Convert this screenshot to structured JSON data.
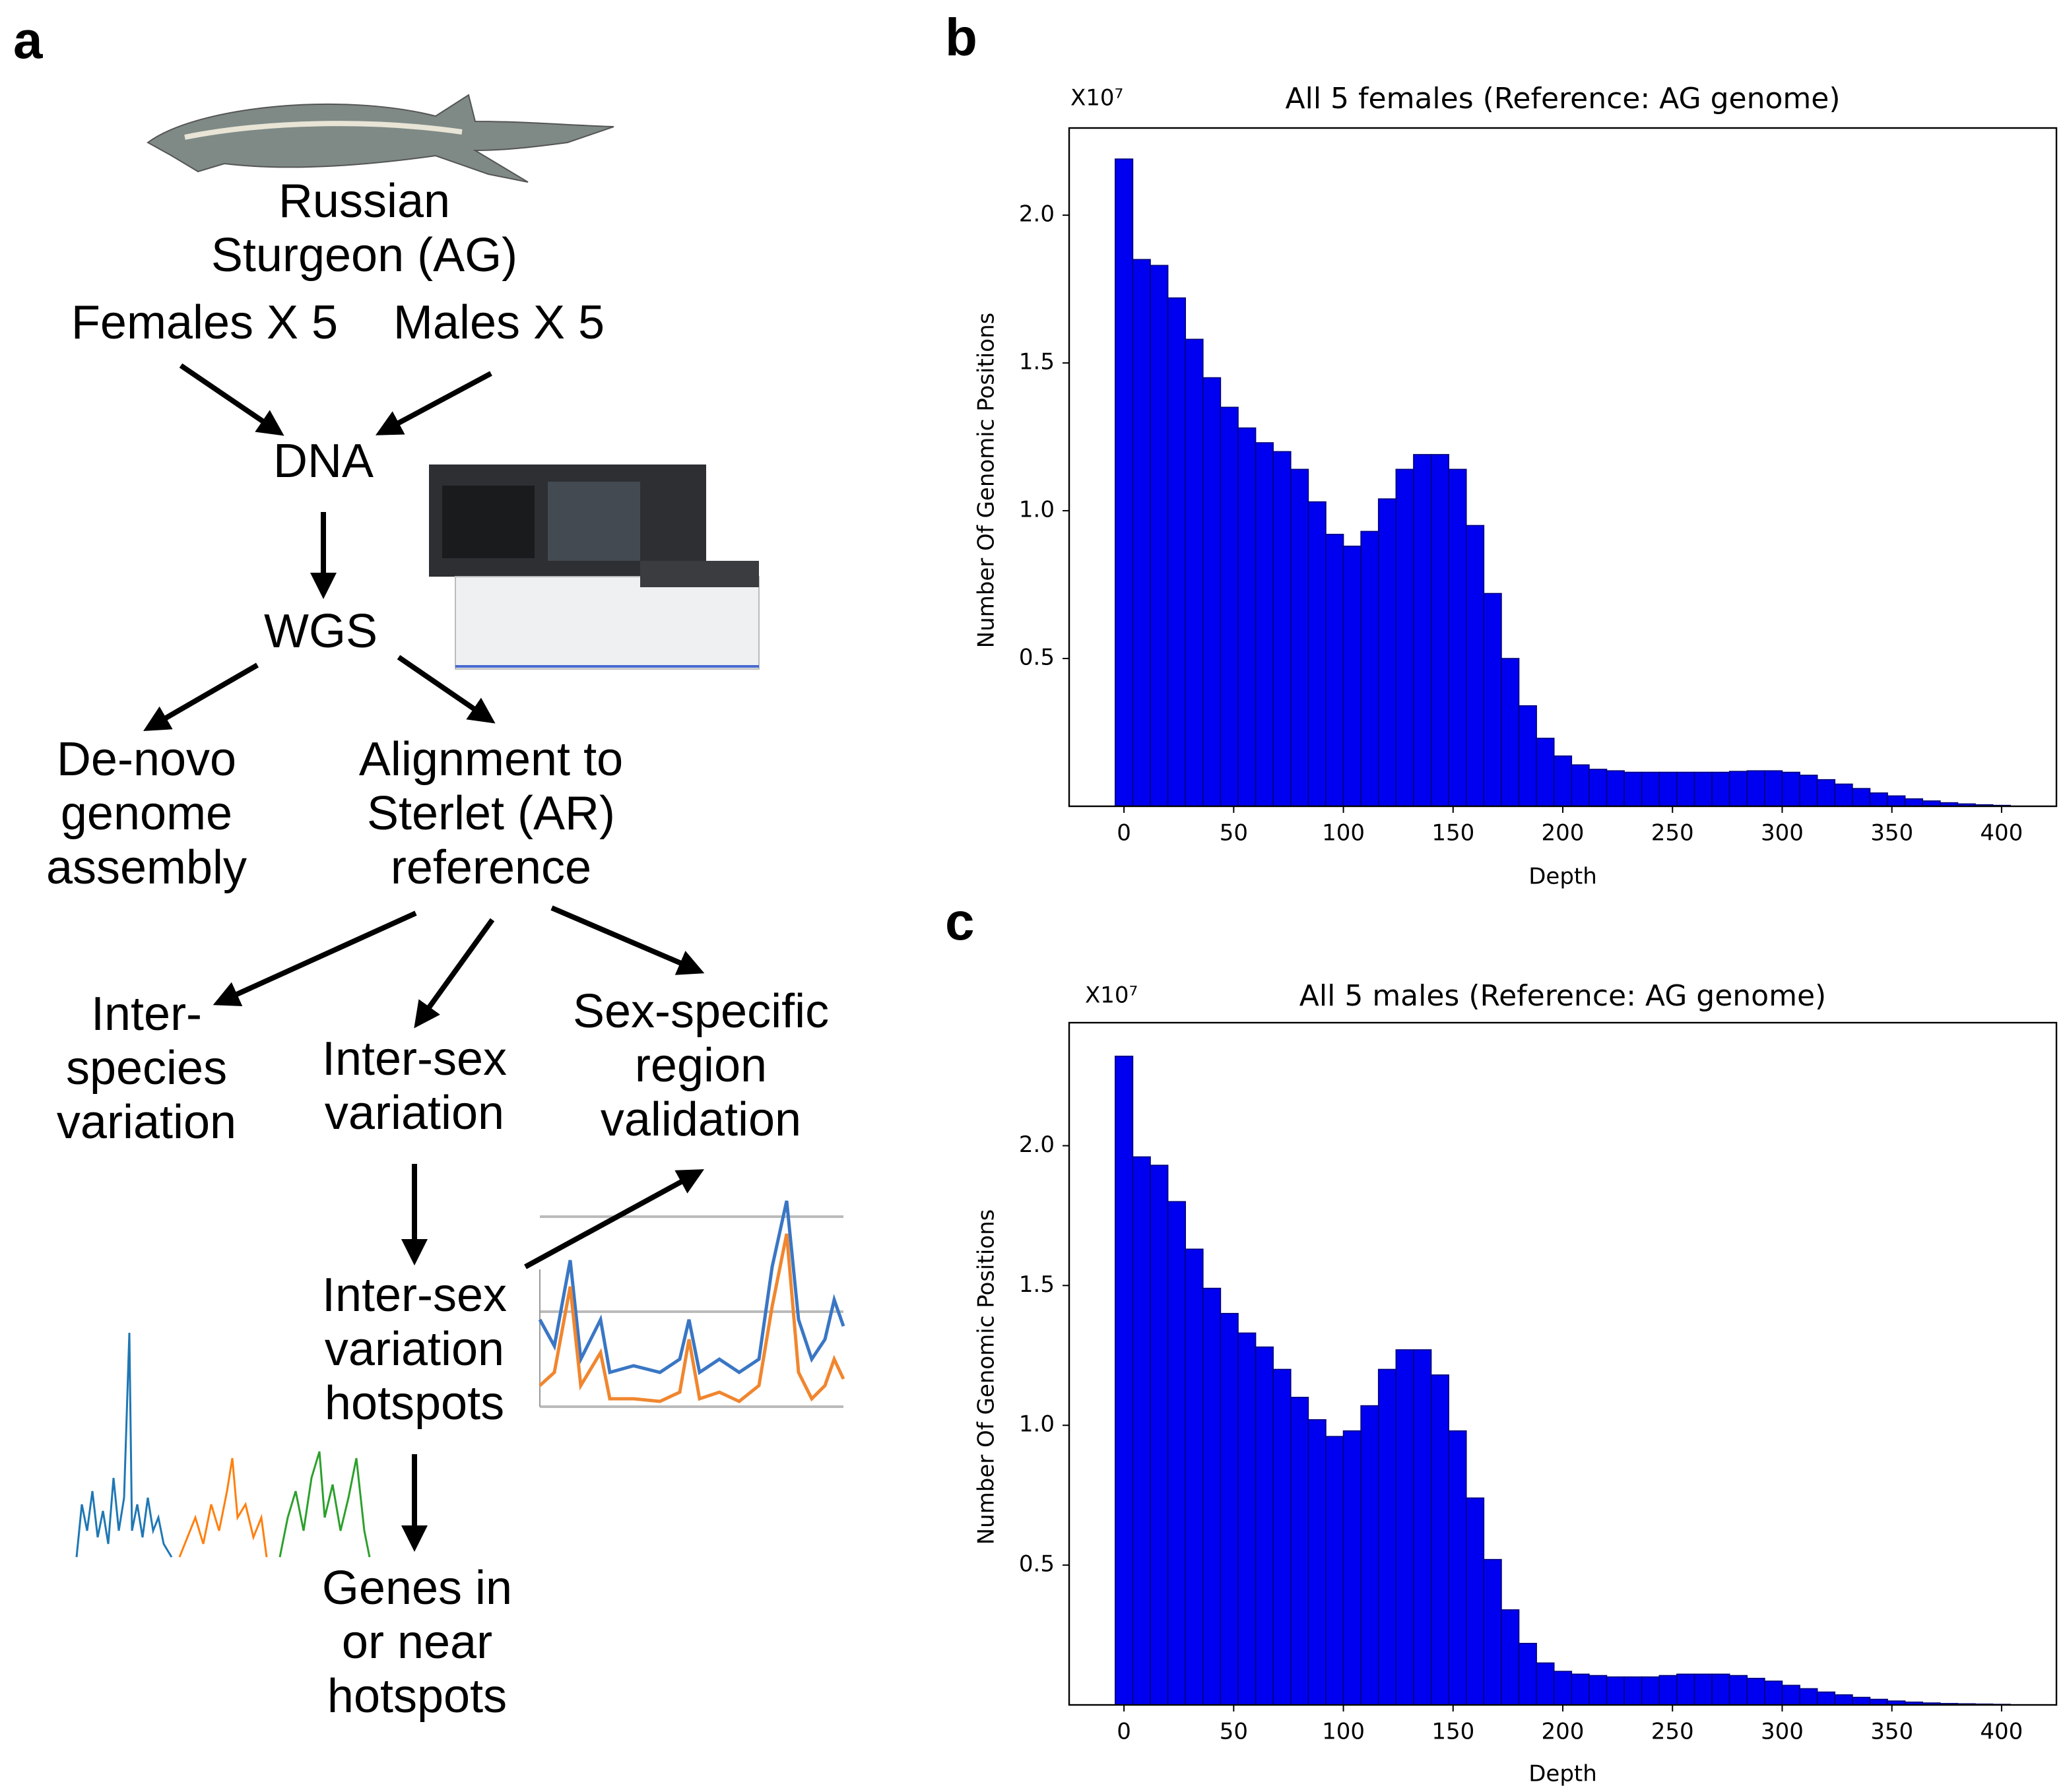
{
  "panels": [
    "a",
    "b",
    "c"
  ],
  "diagram": {
    "nodes": [
      {
        "lines": [
          "Russian",
          "Sturgeon (AG)"
        ]
      },
      {
        "lines": [
          "Females X 5"
        ]
      },
      {
        "lines": [
          "Males X 5"
        ]
      },
      {
        "lines": [
          "DNA"
        ]
      },
      {
        "lines": [
          "WGS"
        ]
      },
      {
        "lines": [
          "De-novo",
          "genome",
          "assembly"
        ]
      },
      {
        "lines": [
          "Alignment to",
          "Sterlet (AR)",
          "reference"
        ]
      },
      {
        "lines": [
          "Inter-",
          "species",
          "variation"
        ]
      },
      {
        "lines": [
          "Inter-sex",
          "variation"
        ]
      },
      {
        "lines": [
          "Sex-specific",
          "region",
          "validation"
        ]
      },
      {
        "lines": [
          "Inter-sex",
          "variation",
          "hotspots"
        ]
      },
      {
        "lines": [
          "Genes in",
          "or near",
          "hotspots"
        ]
      }
    ]
  },
  "chart_data": [
    {
      "type": "histogram",
      "title": "All 5 females (Reference: AG genome)",
      "offset_label": "X10⁷",
      "xlabel": "Depth",
      "ylabel": "Number Of Genomic Positions",
      "color": "#0000f0",
      "edgecolor": "#00007a",
      "bins": [
        -4,
        4,
        12,
        20,
        28,
        36,
        44,
        52,
        60,
        68,
        76,
        84,
        92,
        100,
        108,
        116,
        124,
        132,
        140,
        148,
        156,
        164,
        172,
        180,
        188,
        196,
        204,
        212,
        220,
        228,
        236,
        244,
        252,
        260,
        268,
        276,
        284,
        292,
        300,
        308,
        316,
        324,
        332,
        340,
        348,
        356,
        364,
        372,
        380,
        388,
        396,
        404
      ],
      "values": [
        2.19,
        1.85,
        1.83,
        1.72,
        1.58,
        1.45,
        1.35,
        1.28,
        1.23,
        1.2,
        1.14,
        1.03,
        0.92,
        0.88,
        0.93,
        1.04,
        1.14,
        1.19,
        1.19,
        1.14,
        0.95,
        0.72,
        0.5,
        0.34,
        0.23,
        0.17,
        0.14,
        0.125,
        0.12,
        0.115,
        0.115,
        0.115,
        0.115,
        0.115,
        0.115,
        0.118,
        0.12,
        0.12,
        0.115,
        0.105,
        0.09,
        0.075,
        0.06,
        0.045,
        0.035,
        0.025,
        0.018,
        0.012,
        0.008,
        0.005,
        0.003
      ],
      "xlim": [
        -25,
        425
      ],
      "ylim": [
        0,
        2.295
      ],
      "xticks": [
        0,
        50,
        100,
        150,
        200,
        250,
        300,
        350,
        400
      ],
      "yticks": [
        0.5,
        {
          "value": 1,
          "label": "1.0"
        },
        1.5,
        {
          "value": 2,
          "label": "2.0"
        }
      ]
    },
    {
      "type": "histogram",
      "title": "All 5 males (Reference: AG genome)",
      "offset_label": "X10⁷",
      "xlabel": "Depth",
      "ylabel": "Number Of Genomic Positions",
      "color": "#0000f0",
      "edgecolor": "#00007a",
      "bins": [
        -4,
        4,
        12,
        20,
        28,
        36,
        44,
        52,
        60,
        68,
        76,
        84,
        92,
        100,
        108,
        116,
        124,
        132,
        140,
        148,
        156,
        164,
        172,
        180,
        188,
        196,
        204,
        212,
        220,
        228,
        236,
        244,
        252,
        260,
        268,
        276,
        284,
        292,
        300,
        308,
        316,
        324,
        332,
        340,
        348,
        356,
        364,
        372,
        380,
        388,
        396,
        404
      ],
      "values": [
        2.32,
        1.96,
        1.93,
        1.8,
        1.63,
        1.49,
        1.4,
        1.33,
        1.28,
        1.2,
        1.1,
        1.02,
        0.96,
        0.98,
        1.07,
        1.2,
        1.27,
        1.27,
        1.18,
        0.98,
        0.74,
        0.52,
        0.34,
        0.22,
        0.15,
        0.12,
        0.11,
        0.105,
        0.1,
        0.1,
        0.1,
        0.105,
        0.11,
        0.11,
        0.11,
        0.105,
        0.095,
        0.085,
        0.07,
        0.058,
        0.046,
        0.036,
        0.027,
        0.02,
        0.014,
        0.01,
        0.007,
        0.005,
        0.004,
        0.003,
        0.002
      ],
      "xlim": [
        -25,
        425
      ],
      "ylim": [
        0,
        2.44
      ],
      "xticks": [
        0,
        50,
        100,
        150,
        200,
        250,
        300,
        350,
        400
      ],
      "yticks": [
        0.5,
        {
          "value": 1,
          "label": "1.0"
        },
        1.5,
        {
          "value": 2,
          "label": "2.0"
        }
      ]
    }
  ]
}
